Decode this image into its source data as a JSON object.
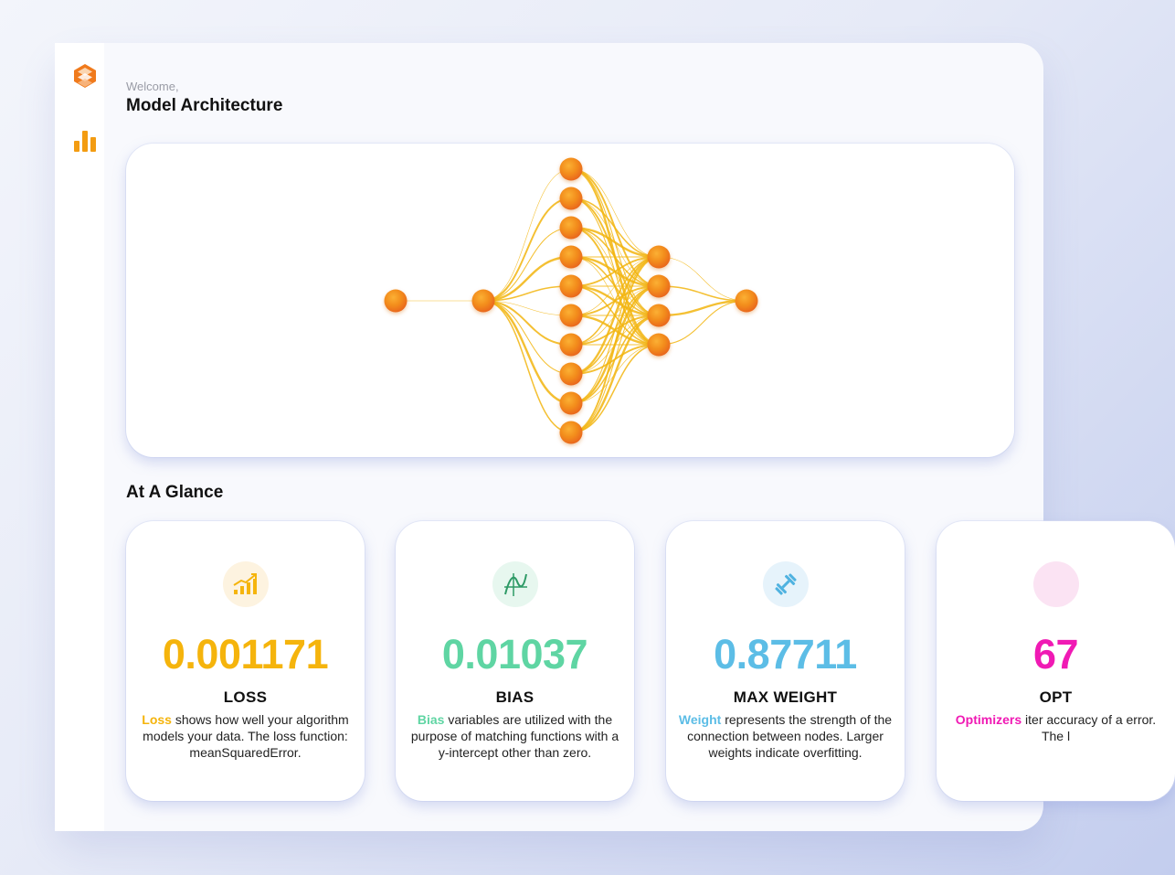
{
  "header": {
    "welcome": "Welcome,",
    "title": "Model Architecture"
  },
  "sidebar": {
    "items": [
      {
        "icon": "logo-icon",
        "color": "#f07a1c"
      },
      {
        "icon": "bar-chart-icon",
        "color": "#f39c12"
      }
    ]
  },
  "architecture": {
    "layers": [
      1,
      1,
      10,
      4,
      1
    ],
    "node_color": "#f08a18",
    "edge_color": "#f2b50f"
  },
  "glance": {
    "title": "At A Glance",
    "cards": [
      {
        "icon": "trend-up-bars-icon",
        "value": "0.001171",
        "label": "LOSS",
        "keyword": "Loss",
        "description": " shows how well your algorithm models your data. The loss function: meanSquaredError.",
        "color": "#f5b40c",
        "icon_bg": "#fdf3e0"
      },
      {
        "icon": "function-curve-icon",
        "value": "0.01037",
        "label": "BIAS",
        "keyword": "Bias",
        "description": " variables are utilized with the purpose of matching functions with a y-intercept other than zero.",
        "color": "#5fd5a3",
        "icon_bg": "#e7f7ef"
      },
      {
        "icon": "dumbbell-icon",
        "value": "0.87711",
        "label": "MAX WEIGHT",
        "keyword": "Weight",
        "description": " represents the strength of the connection between nodes. Larger weights indicate overfitting.",
        "color": "#5cbde6",
        "icon_bg": "#e6f3fb"
      },
      {
        "icon": "optimizer-icon",
        "value": "67",
        "label": "OPT",
        "keyword": "Optimizers",
        "description": " iter accuracy of a error. The l",
        "color": "#f01ab4",
        "icon_bg": "#fbe3f3"
      }
    ]
  }
}
